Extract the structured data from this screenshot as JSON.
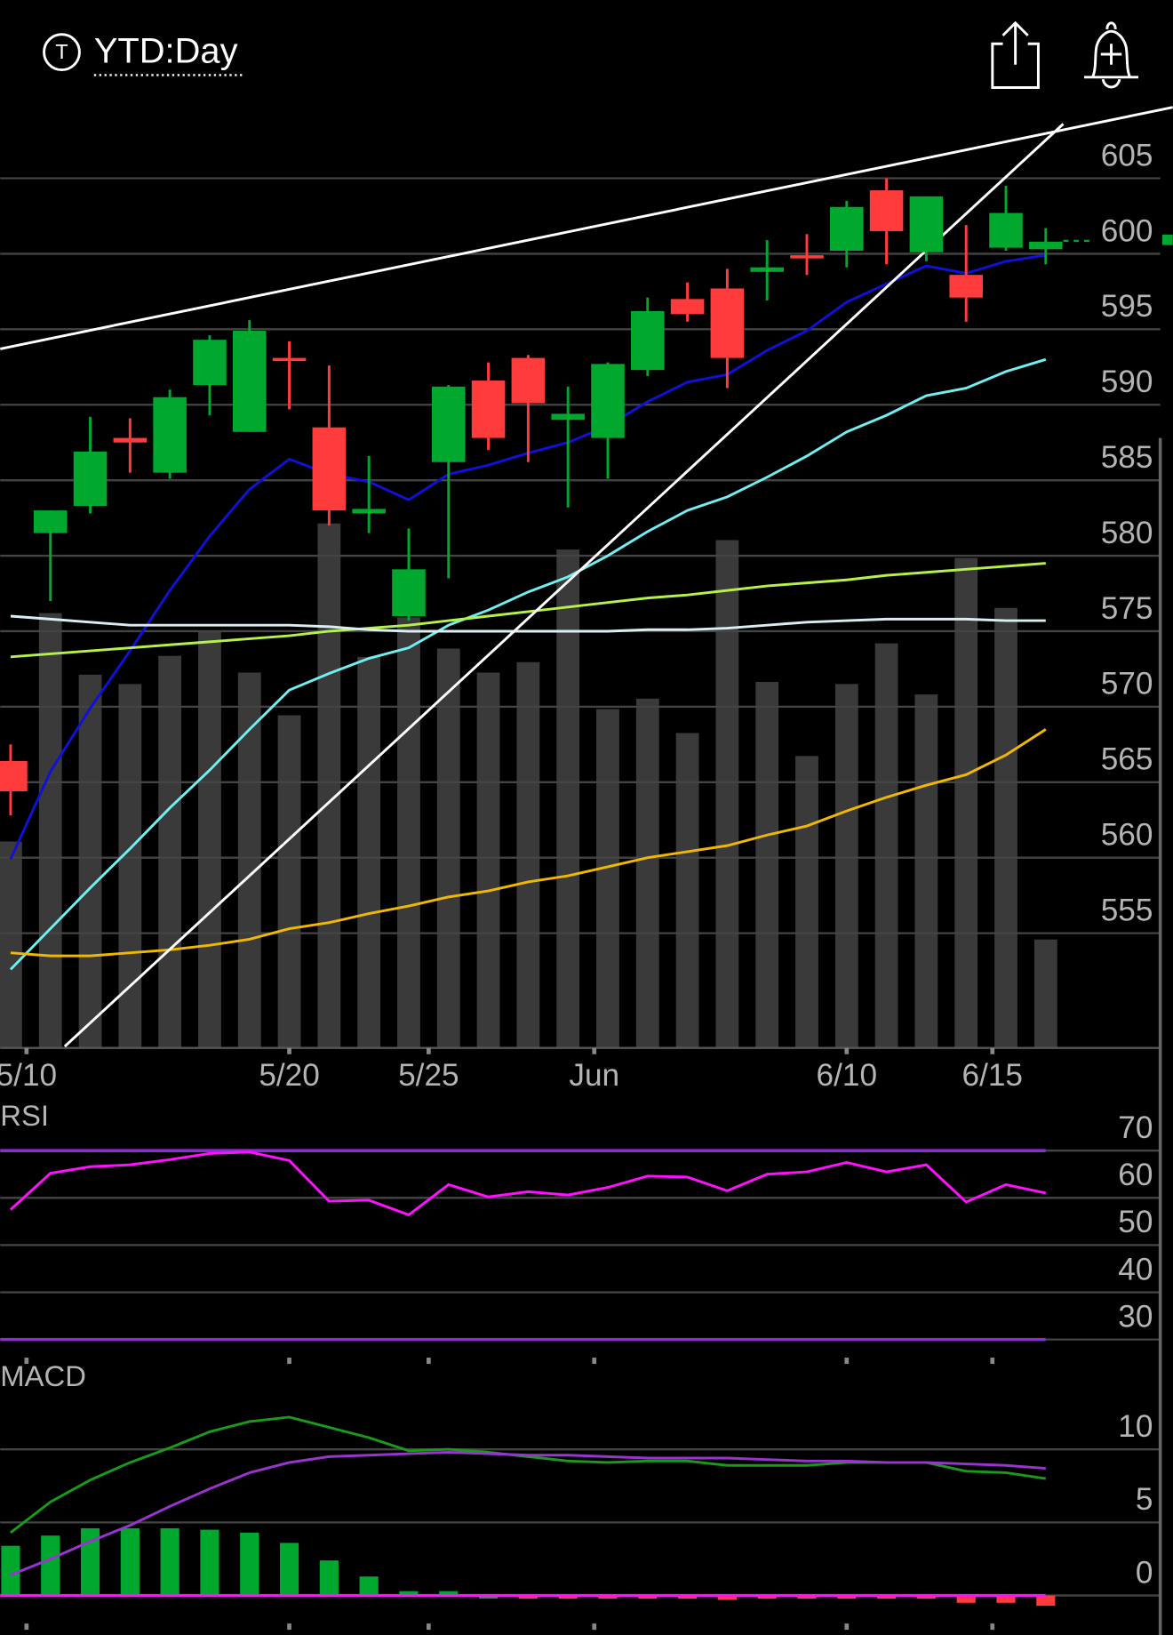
{
  "header": {
    "badge": "T",
    "title": "YTD:Day"
  },
  "chart_data": [
    {
      "type": "candlestick",
      "xlim": [
        -0.26,
        29.19
      ],
      "xticks": [
        {
          "value": 0.4,
          "label": "5/10"
        },
        {
          "value": 7,
          "label": "5/20"
        },
        {
          "value": 10.5,
          "label": "5/25"
        },
        {
          "value": 14.66,
          "label": "Jun"
        },
        {
          "value": 21,
          "label": "6/10"
        },
        {
          "value": 24.66,
          "label": "6/15"
        }
      ],
      "ylim": [
        547.4,
        609.9
      ],
      "yticks": [
        605,
        600,
        595,
        590,
        585,
        580,
        575,
        570,
        565,
        560,
        555
      ],
      "grid": true,
      "up_color": "#00a82d",
      "down_color": "#ff3b3b",
      "volume_color": "#3a3a3a",
      "open": [
        566.4,
        581.5,
        583.3,
        587.8,
        585.5,
        591.3,
        588.2,
        593.1,
        588.5,
        582.8,
        576.0,
        586.2,
        591.6,
        593.1,
        589.0,
        587.8,
        592.3,
        597.0,
        597.7,
        598.8,
        599.9,
        600.2,
        604.2,
        600.1,
        598.6,
        600.4,
        600.3
      ],
      "high": [
        567.5,
        583.0,
        589.2,
        589.1,
        591.0,
        594.6,
        595.6,
        594.2,
        592.6,
        586.6,
        581.8,
        591.3,
        592.8,
        593.3,
        591.2,
        592.8,
        597.1,
        598.1,
        599.0,
        600.9,
        601.3,
        603.5,
        605.0,
        603.8,
        601.9,
        604.5,
        601.7
      ],
      "low": [
        562.8,
        577.0,
        582.8,
        585.5,
        585.1,
        589.3,
        588.2,
        589.7,
        582.0,
        581.5,
        575.7,
        578.5,
        587.0,
        586.2,
        583.2,
        585.1,
        591.9,
        595.5,
        591.1,
        596.9,
        598.6,
        599.1,
        599.3,
        599.5,
        595.5,
        600.2,
        599.3
      ],
      "close": [
        564.4,
        583.0,
        586.9,
        587.5,
        590.5,
        594.3,
        594.9,
        592.9,
        583.0,
        583.1,
        579.1,
        591.2,
        587.8,
        590.1,
        589.4,
        592.7,
        596.2,
        596.0,
        593.1,
        599.1,
        599.7,
        603.1,
        601.5,
        603.8,
        597.1,
        602.7,
        600.8
      ],
      "volume": [
        198,
        417,
        358,
        349,
        376,
        400,
        360,
        319,
        503,
        375,
        413,
        383,
        360,
        370,
        478,
        325,
        335,
        302,
        487,
        351,
        280,
        349,
        388,
        339,
        470,
        422,
        104
      ],
      "series": [
        {
          "color": "#1010d8",
          "values": [
            559.9,
            565.7,
            569.9,
            573.7,
            577.7,
            581.3,
            584.4,
            586.4,
            585.4,
            584.9,
            583.7,
            585.4,
            586.0,
            586.8,
            587.5,
            588.6,
            590.2,
            591.5,
            592.0,
            593.6,
            594.9,
            596.8,
            598.0,
            599.2,
            598.7,
            599.5,
            599.9
          ]
        },
        {
          "color": "#70eef0",
          "values": [
            552.6,
            555.3,
            558.0,
            560.6,
            563.3,
            565.8,
            568.5,
            571.1,
            572.2,
            573.2,
            573.9,
            575.4,
            576.4,
            577.6,
            578.6,
            580.0,
            581.6,
            583.0,
            583.9,
            585.2,
            586.6,
            588.2,
            589.3,
            590.6,
            591.1,
            592.2,
            593.0
          ]
        },
        {
          "color": "#b6f04c",
          "values": [
            573.3,
            573.5,
            573.7,
            573.9,
            574.1,
            574.3,
            574.5,
            574.7,
            575.0,
            575.2,
            575.4,
            575.7,
            576.0,
            576.3,
            576.6,
            576.9,
            577.2,
            577.4,
            577.7,
            578.0,
            578.2,
            578.4,
            578.7,
            578.9,
            579.1,
            579.3,
            579.5
          ]
        },
        {
          "color": "#d8eef0",
          "values": [
            576.0,
            575.8,
            575.6,
            575.4,
            575.4,
            575.4,
            575.4,
            575.4,
            575.3,
            575.1,
            575.0,
            575.0,
            575.0,
            575.0,
            575.0,
            575.0,
            575.1,
            575.1,
            575.2,
            575.4,
            575.6,
            575.7,
            575.8,
            575.8,
            575.8,
            575.7,
            575.7
          ]
        },
        {
          "color": "#f0b800",
          "values": [
            553.7,
            553.5,
            553.5,
            553.7,
            553.9,
            554.2,
            554.6,
            555.3,
            555.7,
            556.3,
            556.8,
            557.4,
            557.8,
            558.4,
            558.8,
            559.4,
            560.0,
            560.4,
            560.8,
            561.5,
            562.1,
            563.1,
            564.0,
            564.8,
            565.5,
            566.8,
            568.5
          ]
        }
      ],
      "trendlines": [
        {
          "color": "#ffffff",
          "points": [
            [
              -0.26,
              593.7
            ],
            [
              29.19,
              609.7
            ]
          ]
        },
        {
          "color": "#ffffff",
          "points": [
            [
              1.36,
              547.5
            ],
            [
              26.44,
              608.6
            ]
          ]
        }
      ]
    },
    {
      "type": "line",
      "title": "RSI",
      "ylim": [
        26.6,
        79.6
      ],
      "yticks": [
        70,
        60,
        50,
        40,
        30
      ],
      "grid": true,
      "bands": [
        70,
        30
      ],
      "band_color": "#8e2ad6",
      "color": "#ff10ff",
      "values": [
        57.5,
        65.2,
        66.6,
        67.0,
        68.1,
        69.4,
        69.7,
        67.9,
        59.3,
        59.5,
        56.4,
        62.8,
        60.2,
        61.3,
        60.6,
        62.2,
        64.6,
        64.4,
        61.5,
        65.0,
        65.5,
        67.5,
        65.5,
        67.0,
        59.1,
        62.8,
        61.0
      ]
    },
    {
      "type": "macd",
      "title": "MACD",
      "ylim": [
        -2.7,
        15.7
      ],
      "yticks": [
        10,
        5,
        0
      ],
      "grid": true,
      "zero_color": "#ff10ff",
      "macd_color": "#1a9a1a",
      "signal_color": "#9a34d0",
      "macd": [
        4.3,
        6.4,
        7.9,
        9.1,
        10.1,
        11.2,
        11.9,
        12.2,
        11.5,
        10.8,
        9.9,
        10.0,
        9.8,
        9.5,
        9.2,
        9.1,
        9.2,
        9.2,
        8.9,
        8.9,
        8.9,
        9.1,
        9.1,
        9.1,
        8.5,
        8.4,
        8.0
      ],
      "signal": [
        1.4,
        2.5,
        3.7,
        4.8,
        6.1,
        7.3,
        8.4,
        9.1,
        9.5,
        9.6,
        9.7,
        9.8,
        9.7,
        9.6,
        9.6,
        9.5,
        9.4,
        9.4,
        9.4,
        9.3,
        9.2,
        9.2,
        9.1,
        9.1,
        9.0,
        8.9,
        8.7
      ],
      "histogram": [
        3.4,
        4.1,
        4.6,
        4.6,
        4.6,
        4.5,
        4.3,
        3.6,
        2.4,
        1.3,
        0.3,
        0.3,
        0.0,
        -0.1,
        -0.2,
        -0.2,
        -0.2,
        -0.1,
        -0.3,
        -0.2,
        -0.2,
        -0.1,
        -0.1,
        -0.1,
        -0.5,
        -0.5,
        -0.7
      ]
    }
  ]
}
